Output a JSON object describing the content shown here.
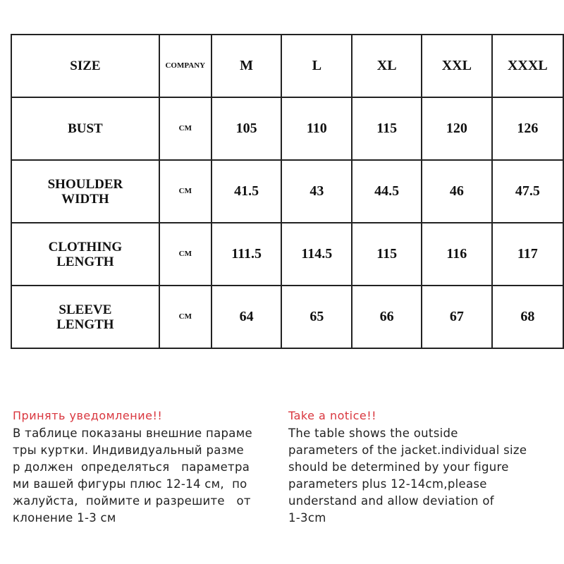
{
  "table": {
    "header": [
      "SIZE",
      "COMPANY",
      "M",
      "L",
      "XL",
      "XXL",
      "XXXL"
    ],
    "rows": [
      {
        "label": "BUST",
        "unit": "CM",
        "values": [
          "105",
          "110",
          "115",
          "120",
          "126"
        ]
      },
      {
        "label": "SHOULDER WIDTH",
        "unit": "CM",
        "values": [
          "41.5",
          "43",
          "44.5",
          "46",
          "47.5"
        ]
      },
      {
        "label": "CLOTHING LENGTH",
        "unit": "CM",
        "values": [
          "111.5",
          "114.5",
          "115",
          "116",
          "117"
        ]
      },
      {
        "label": "SLEEVE LENGTH",
        "unit": "CM",
        "values": [
          "64",
          "65",
          "66",
          "67",
          "68"
        ]
      }
    ]
  },
  "notice_ru": {
    "title": "Принять уведомление!!",
    "lines": [
      "В таблице показаны внешние параме",
      "тры куртки. Индивидуальный разме",
      "р должен  определяться   параметра",
      "ми вашей фигуры плюс 12-14 см,  по",
      "жалуйста,  поймите и разрешите   от",
      "клонение 1-3 см"
    ]
  },
  "notice_en": {
    "title": "Take a notice!!",
    "lines": [
      "The table shows the outside",
      "parameters of the jacket.individual size",
      "should be determined by your figure",
      "parameters plus 12-14cm,please",
      "understand and allow deviation of",
      "1-3cm"
    ]
  },
  "colors": {
    "notice_title": "#d9363e",
    "border": "#222222"
  }
}
